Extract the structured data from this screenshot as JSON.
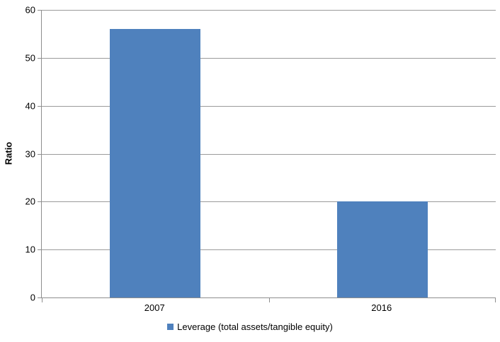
{
  "chart_data": {
    "type": "bar",
    "categories": [
      "2007",
      "2016"
    ],
    "values": [
      56,
      20
    ],
    "series_name": "Leverage (total assets/tangible equity)",
    "title": "",
    "xlabel": "",
    "ylabel": "Ratio",
    "ylim": [
      0,
      60
    ],
    "ytick_step": 10,
    "yticks": [
      0,
      10,
      20,
      30,
      40,
      50,
      60
    ],
    "grid": true,
    "legend_position": "bottom",
    "bar_color": "#4f81bd",
    "gridline_color": "#9a9a9a",
    "axis_color": "#8e8e8e"
  }
}
